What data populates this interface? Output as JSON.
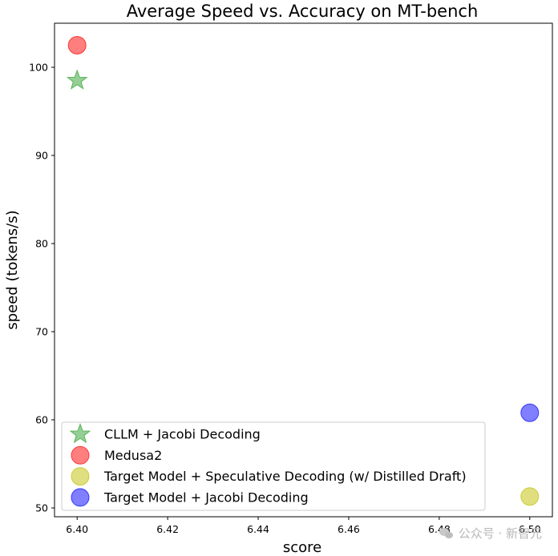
{
  "chart_data": {
    "type": "scatter",
    "title": "Average Speed vs. Accuracy on MT-bench",
    "xlabel": "score",
    "ylabel": "speed (tokens/s)",
    "xlim": [
      6.395,
      6.505
    ],
    "ylim": [
      49,
      105
    ],
    "xticks": [
      6.4,
      6.42,
      6.44,
      6.46,
      6.48,
      6.5
    ],
    "yticks": [
      50,
      60,
      70,
      80,
      90,
      100
    ],
    "xtick_labels": [
      "6.40",
      "6.42",
      "6.44",
      "6.46",
      "6.48",
      "6.50"
    ],
    "ytick_labels": [
      "50",
      "60",
      "70",
      "80",
      "90",
      "100"
    ],
    "grid": false,
    "legend_position": "lower-left",
    "series": [
      {
        "name": "CLLM + Jacobi Decoding",
        "marker": "star",
        "color": "#2ca02c",
        "points": [
          {
            "x": 6.4,
            "y": 98.5
          }
        ]
      },
      {
        "name": "Medusa2",
        "marker": "circle",
        "color": "#ff0000",
        "points": [
          {
            "x": 6.4,
            "y": 102.5
          }
        ]
      },
      {
        "name": "Target Model + Speculative Decoding (w/ Distilled Draft)",
        "marker": "circle",
        "color": "#bfbf00",
        "points": [
          {
            "x": 6.5,
            "y": 51.3
          }
        ]
      },
      {
        "name": "Target Model + Jacobi Decoding",
        "marker": "circle",
        "color": "#0000ff",
        "points": [
          {
            "x": 6.5,
            "y": 60.8
          }
        ]
      }
    ]
  },
  "watermark": {
    "text": "公众号 · 新智元",
    "icon": "wechat-icon"
  }
}
